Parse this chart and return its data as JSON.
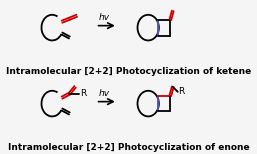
{
  "bg_color": "#f5f5f5",
  "black": "#000000",
  "red": "#cc0000",
  "blue": "#5555cc",
  "arrow_color": "#000000",
  "title1": "Intramolecular [2+2] Photocyclization of ketene",
  "title2": "Intramolecular [2+2] Photocyclization of enone",
  "hv_text": "hv",
  "label_R": "R",
  "title_fontsize": 6.5,
  "hv_fontsize": 6.5,
  "figsize": [
    2.57,
    1.54
  ],
  "dpi": 100
}
